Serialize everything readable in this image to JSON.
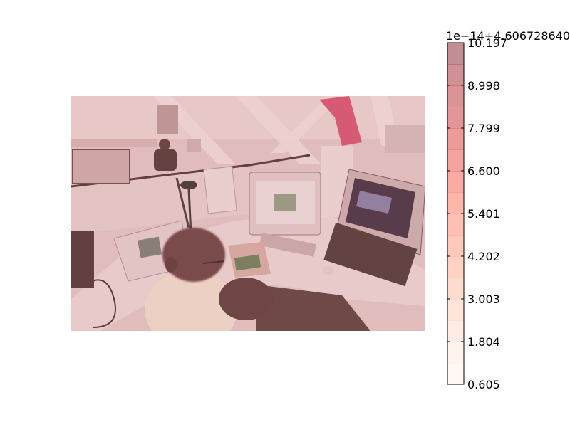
{
  "chart_data": {
    "type": "heatmap",
    "title": "",
    "xlabel": "",
    "ylabel": "",
    "image_description_colormap": "Reds",
    "image_alpha": 0.45,
    "colorbar": {
      "offset_text": "1e−14+4.606728640",
      "range": [
        0.605,
        10.197
      ],
      "ticks": [
        0.605,
        1.804,
        3.003,
        4.202,
        5.401,
        6.6,
        7.799,
        8.998,
        10.197
      ],
      "tick_labels": [
        "0.605",
        "1.804",
        "3.003",
        "4.202",
        "5.401",
        "6.600",
        "7.799",
        "8.998",
        "10.197"
      ],
      "levels": 16,
      "alpha": 0.45,
      "colors": [
        "#fff5f0",
        "#fee0d2",
        "#fcbba1",
        "#fc9272",
        "#fb6a4a",
        "#ef3b2c",
        "#cb181d",
        "#a50f15",
        "#67000d"
      ]
    }
  }
}
